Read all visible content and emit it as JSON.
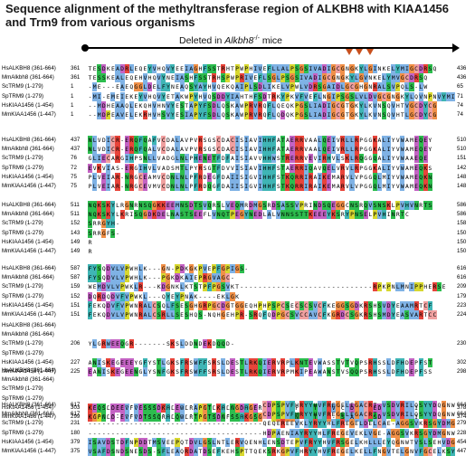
{
  "title": "Sequence alignment of the methyltransferase region of ALKBH8 with KIAA1456 and Trm9 from various organisms",
  "deleted_label": {
    "text": "Deleted in ",
    "gene": "Alkbh8",
    "sup": "-/-",
    "tail": " mice"
  },
  "colors": {
    "hydrophobic": "#7fb2e5",
    "positive": "#e8443a",
    "negative": "#c463c4",
    "polar": "#2dbd4e",
    "glycine": "#f09048",
    "proline": "#d8d830",
    "aromatic": "#3fb5b5",
    "cysteine": "#f0a0a0",
    "marker": "#c8501e"
  },
  "blocks": [
    {
      "rows": [
        {
          "name": "HsALKBH8 (361-664)",
          "start": "361",
          "seq": "TESDKEADRLEQEYVHQVYEEIAGHFSSTRHTPWPHIVEFLLALPSGSIVADIGCGNGKYLGINKELYMIGCDRSQ",
          "end": "436"
        },
        {
          "name": "MmAlkbh8 (361-664)",
          "start": "361",
          "seq": "TESSKEALEQEHVHQVYNEIASHFSSTRHSPWPRIVEFLSGLPSGSIVADIGCGNGKYLGVNKELYMVGCDRSQ",
          "end": "436"
        },
        {
          "name": "ScTRM9 (1-279)",
          "start": "1",
          "seq": "-ME---EAEQGGLDELFYNEAQSYAYHVQEKQAIPLSDLIKELVPWLVDRSGAIDLGCGHGNRALSVPQLS-LW",
          "end": "65"
        },
        {
          "name": "SpTRM9 (1-279)",
          "start": "1",
          "seq": "-MI-EMEIEKEYVHQVYETAKWPYHVQSDDYIAHTHFSDTRKYPKVFVEFLNGIPSGSLVLDVGCGNGKYLQVNPNVYMIGCDRCT",
          "end": "71"
        },
        {
          "name": "HsKIAA1456 (1-454)",
          "start": "1",
          "seq": "--MDHEAAQLEKQHVHNVYESTAPYFSDLQSKAWPRVRQFLQEQKPGSLIADIGCGTGKYLKVNSQVHTVGCDYCG",
          "end": "74"
        },
        {
          "name": "MmKIAA1456 (1-447)",
          "start": "1",
          "seq": "--MDPEAVELEKRHVHSVYESIAPYFSDLQSKAWPRVRQFLQDQKPGSLIADIGCGTGKYLKVNSQVHTLGCDYCG",
          "end": "74"
        }
      ]
    },
    {
      "rows": [
        {
          "name": "HsALKBH8 (361-664)",
          "start": "437",
          "seq": "NLVDICR-ERQFQAFVCDALAVPVRSGSCDACISIAVIHHFATAERRVAALQEIVRLLRPGGKALIYVWAMEQEY",
          "end": "510"
        },
        {
          "name": "MmAlkbh8 (361-664)",
          "start": "437",
          "seq": "NLVDICR-ERQFQALVCDALAVPVRSGSCDACISIAVIHHFATAERRVAALQEIVRLLRPGGKALIYVWAMEQEY",
          "end": "510"
        },
        {
          "name": "ScTRM9 (1-279)",
          "start": "76",
          "seq": "GLIECARGIHPSNLLVADGLNLPHENETFDFAISIAVVHHWSTRERRVEVIRHVLSKLRQGGQALIYVWAAEQE",
          "end": "151"
        },
        {
          "name": "SpTRM9 (1-279)",
          "start": "72",
          "seq": "EVKVIAS-ERGIHVLVADSMTLPYRSGTFDVVISIAVIHHFSTAERRIQAVQELVRVLRPGGKALIYVWAMEQKS",
          "end": "142"
        },
        {
          "name": "HsKIAA1456 (1-454)",
          "start": "75",
          "seq": "PLVEIAR-NRGCEAMVCDNLNLPFRDEGFDAIISIGVIHHFSTKQRRIRAIKEMARVLVPGGQLMIYVWAMEQKN",
          "end": "148"
        },
        {
          "name": "MmKIAA1456 (1-447)",
          "start": "75",
          "seq": "PLVEIAR-NRGCEVMVCDNLNLPFRDQGFDAIISIGVIHHFSTKQRRIRAIKEMARVLVPGGQLMIYVWAMEQKN",
          "end": "148"
        }
      ]
    },
    {
      "rows": [
        {
          "name": "HsALKBH8 (361-664)",
          "start": "511",
          "seq": "NQKSKYLRGNRNSQGKKEEMNSDTSVQRSLVEQMRDMGSRDSASSVPRINDSQEGGCNSRQVSNSKLPVHVNRTS",
          "end": "586"
        },
        {
          "name": "MmAlkbh8 (361-664)",
          "start": "511",
          "seq": "NQKSKYLKRISQGDKDELNASTSEEFLVNQTPEGYNEDLALVNNSSTTKEEEYKSRYPNSELPVHINRTC",
          "end": "586"
        },
        {
          "name": "ScTRM9 (1-279)",
          "start": "152",
          "seq": "SRRGYH-",
          "end": "158"
        },
        {
          "name": "SpTRM9 (1-279)",
          "start": "143",
          "seq": "SRRGFS-",
          "end": "150"
        },
        {
          "name": "HsKIAA1456 (1-454)",
          "start": "149",
          "seq": "R",
          "end": "150"
        },
        {
          "name": "MmKIAA1456 (1-447)",
          "start": "149",
          "seq": "R",
          "end": "150"
        }
      ]
    },
    {
      "rows": [
        {
          "name": "HsALKBH8 (361-664)",
          "start": "587",
          "seq": "FYSQDVLVPWHLK---GN-PDKGKPVEPFGPIGS-",
          "end": "616"
        },
        {
          "name": "MmAlkbh8 (361-664)",
          "start": "587",
          "seq": "FYSQDVLVPWHLK---PGKDKAIEPRGVAGC-",
          "end": "616"
        },
        {
          "name": "ScTRM9 (1-279)",
          "start": "159",
          "seq": "WEMDVLVPWKLR---KDGNKLKTSTPFPGSVKT-----------------------------RPKPNLMNIPPHERSE",
          "end": "209"
        },
        {
          "name": "SpTRM9 (1-279)",
          "start": "152",
          "seq": "DQRDQDVFVPWKL---QYEYPNAK----EKLGK",
          "end": "179"
        },
        {
          "name": "HsKIAA1456 (1-454)",
          "start": "151",
          "seq": "FEKQDVFVPWNRALCSQLFSESGHGRPGCDGTGGEQHPHPSPCSECSCSVCFKEGGSGDKRSHSVDYEAAMRTCF",
          "end": "223"
        },
        {
          "name": "MmKIAA1456 (1-447)",
          "start": "151",
          "seq": "FEKQDVLVPWNRALCSRLLSESHQS-NQHGEHPR-SRQFQDPGCSVCCAVCFKGRDCSGKRSHSMDYEASVARTCC",
          "end": "224"
        }
      ]
    },
    {
      "rows": [
        {
          "name": "HsALKBH8 (361-664)",
          "start": "",
          "seq": "",
          "end": ""
        },
        {
          "name": "MmAlkbh8 (361-664)",
          "start": "",
          "seq": "",
          "end": ""
        },
        {
          "name": "ScTRM9 (1-279)",
          "start": "206",
          "seq": "YLGRWEEQGR-------SKSLDDNDEKDQQD-",
          "end": "230"
        },
        {
          "name": "SpTRM9 (1-279)",
          "start": "",
          "seq": "",
          "end": ""
        },
        {
          "name": "HsKIAA1456 (1-454)",
          "start": "227",
          "seq": "ANISKEGEEEYGFYSTLGKSFRSWFFSRSLDESTLRKQIERVRPLKNTEVWASSTVTVQPSRHSSLDFHDEPFST",
          "end": "302"
        },
        {
          "name": "MmKIAA1456 (1-447)",
          "start": "225",
          "seq": "EANISKEGEENGLYSNFGKSFRSWFFSRSLDESTLRKQIERVRPMKIPEAWANSTVSQQPSRHSSLDFHDEPFSS",
          "end": "298"
        }
      ]
    },
    {
      "rows": [
        {
          "name": "HsALKBH8 (361-664)",
          "start": "",
          "seq": "",
          "end": ""
        },
        {
          "name": "MmAlkbh8 (361-664)",
          "start": "",
          "seq": "",
          "end": ""
        },
        {
          "name": "ScTRM9 (1-279)",
          "start": "",
          "seq": "",
          "end": ""
        },
        {
          "name": "SpTRM9 (1-279)",
          "start": "",
          "seq": "",
          "end": ""
        },
        {
          "name": "HsKIAA1456 (1-454)",
          "start": "303",
          "seq": "KEQSLDEEVFVESSSDKHLEWLRAPGTLKHLNGDHGERMRRNGGNFLDSTNTGVNCVDADNIEDDNPSASKILRR",
          "end": "378"
        },
        {
          "name": "MmKIAA1456 (1-447)",
          "start": "299",
          "seq": "KGPNLD-EVFVDTSSQRHLQWLRTPGTSDNFSSHKGSGRRPGEGGNFLDTTDG-DSVAASNSSD--PSARKILRR",
          "end": "374"
        }
      ]
    },
    {
      "rows": [
        {
          "name": "HsALKBH8 (361-664)",
          "start": "617",
          "seq": "--------------------------------------CDPSPVFHRYYHVFREGELEGACRT-VSDVRILQSYYDQGNWCVILQKA",
          "end": "664"
        },
        {
          "name": "MmAlkbh8 (361-664)",
          "start": "617",
          "seq": "--------------------------------------CDPSPVFHRYYHVFREGELEGACRT-VSDVRILQSYYDQGNWCVILQKA",
          "end": "664"
        },
        {
          "name": "ScTRM9 (1-279)",
          "start": "231",
          "seq": "--------------------------------------QEQEREEVKLYRYYHLFREGELDELCAE-AGGSVKRSGYDMGNWGVILQKV",
          "end": "279"
        },
        {
          "name": "SpTRM9 (1-279)",
          "start": "180",
          "seq": "--------------------------------------HDPAENIAYRYYHLFREGEVEKLVGE-AGGSVKRSGYDMGNWAVILQKA",
          "end": "228"
        },
        {
          "name": "HsKIAA1456 (1-454)",
          "start": "379",
          "seq": "ISAVDSTDFNPDDTMSVEEPQTDVLGSLNTLERVQENHLENSDTEPVFRYYHVFRSGELKHLLLEYQGNWTVSLSEHVDGEYSQNKVLGNWAISIQKS",
          "end": "454"
        },
        {
          "name": "MmKIAA1456 (1-447)",
          "start": "375",
          "seq": "VSAFDSNDSNESDS-SFLEAQRDATDSEFKEHSPTTQEKSRKGPVFHRYYHVFREGELKELLFNGVTELGNVFGCELKSYFWNAIAILKRV",
          "end": "447"
        }
      ]
    }
  ]
}
